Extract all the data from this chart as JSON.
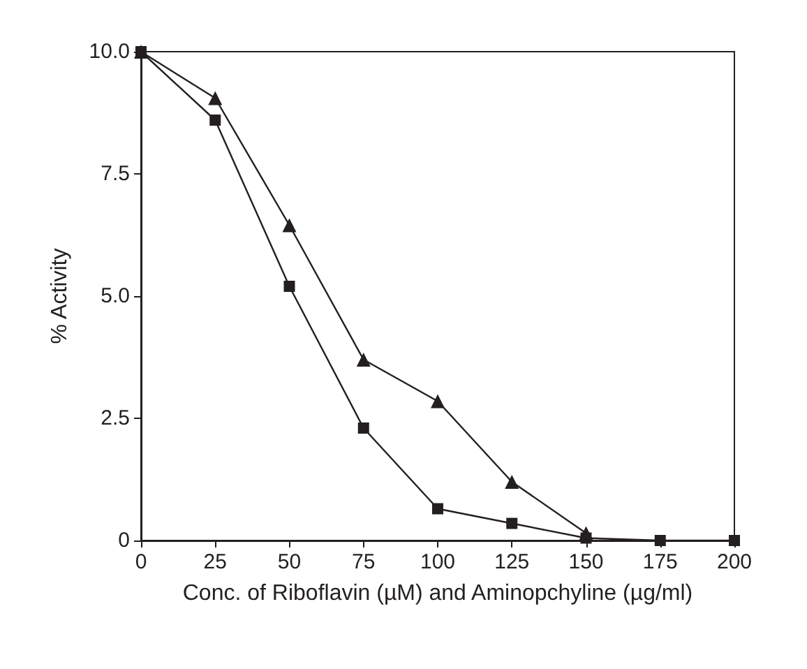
{
  "chart_data": {
    "type": "line",
    "xlabel": "Conc. of Riboflavin (µM) and Aminopchyline (µg/ml)",
    "ylabel": "% Activity",
    "series": [
      {
        "color": "#231f20",
        "marker": "triangle",
        "x": [
          0,
          25,
          50,
          75,
          100,
          125,
          150
        ],
        "values": [
          10.0,
          9.05,
          6.45,
          3.7,
          2.85,
          1.2,
          0.15
        ]
      },
      {
        "color": "#231f20",
        "marker": "square",
        "x": [
          0,
          25,
          50,
          75,
          100,
          125,
          150,
          175,
          200
        ],
        "values": [
          10.0,
          8.6,
          5.2,
          2.3,
          0.65,
          0.35,
          0.05,
          0,
          0
        ]
      }
    ],
    "xlim": [
      0,
      200
    ],
    "xticks": [
      0,
      25,
      50,
      75,
      100,
      125,
      150,
      175,
      200
    ],
    "ylim": [
      0,
      10
    ],
    "yticks": [
      {
        "value": 0,
        "label": "0"
      },
      {
        "value": 2.5,
        "label": "2.5"
      },
      {
        "value": 5,
        "label": "5.0"
      },
      {
        "value": 7.5,
        "label": "7.5"
      },
      {
        "value": 10,
        "label": "10.0"
      }
    ],
    "grid": false,
    "line_style": "solid"
  }
}
